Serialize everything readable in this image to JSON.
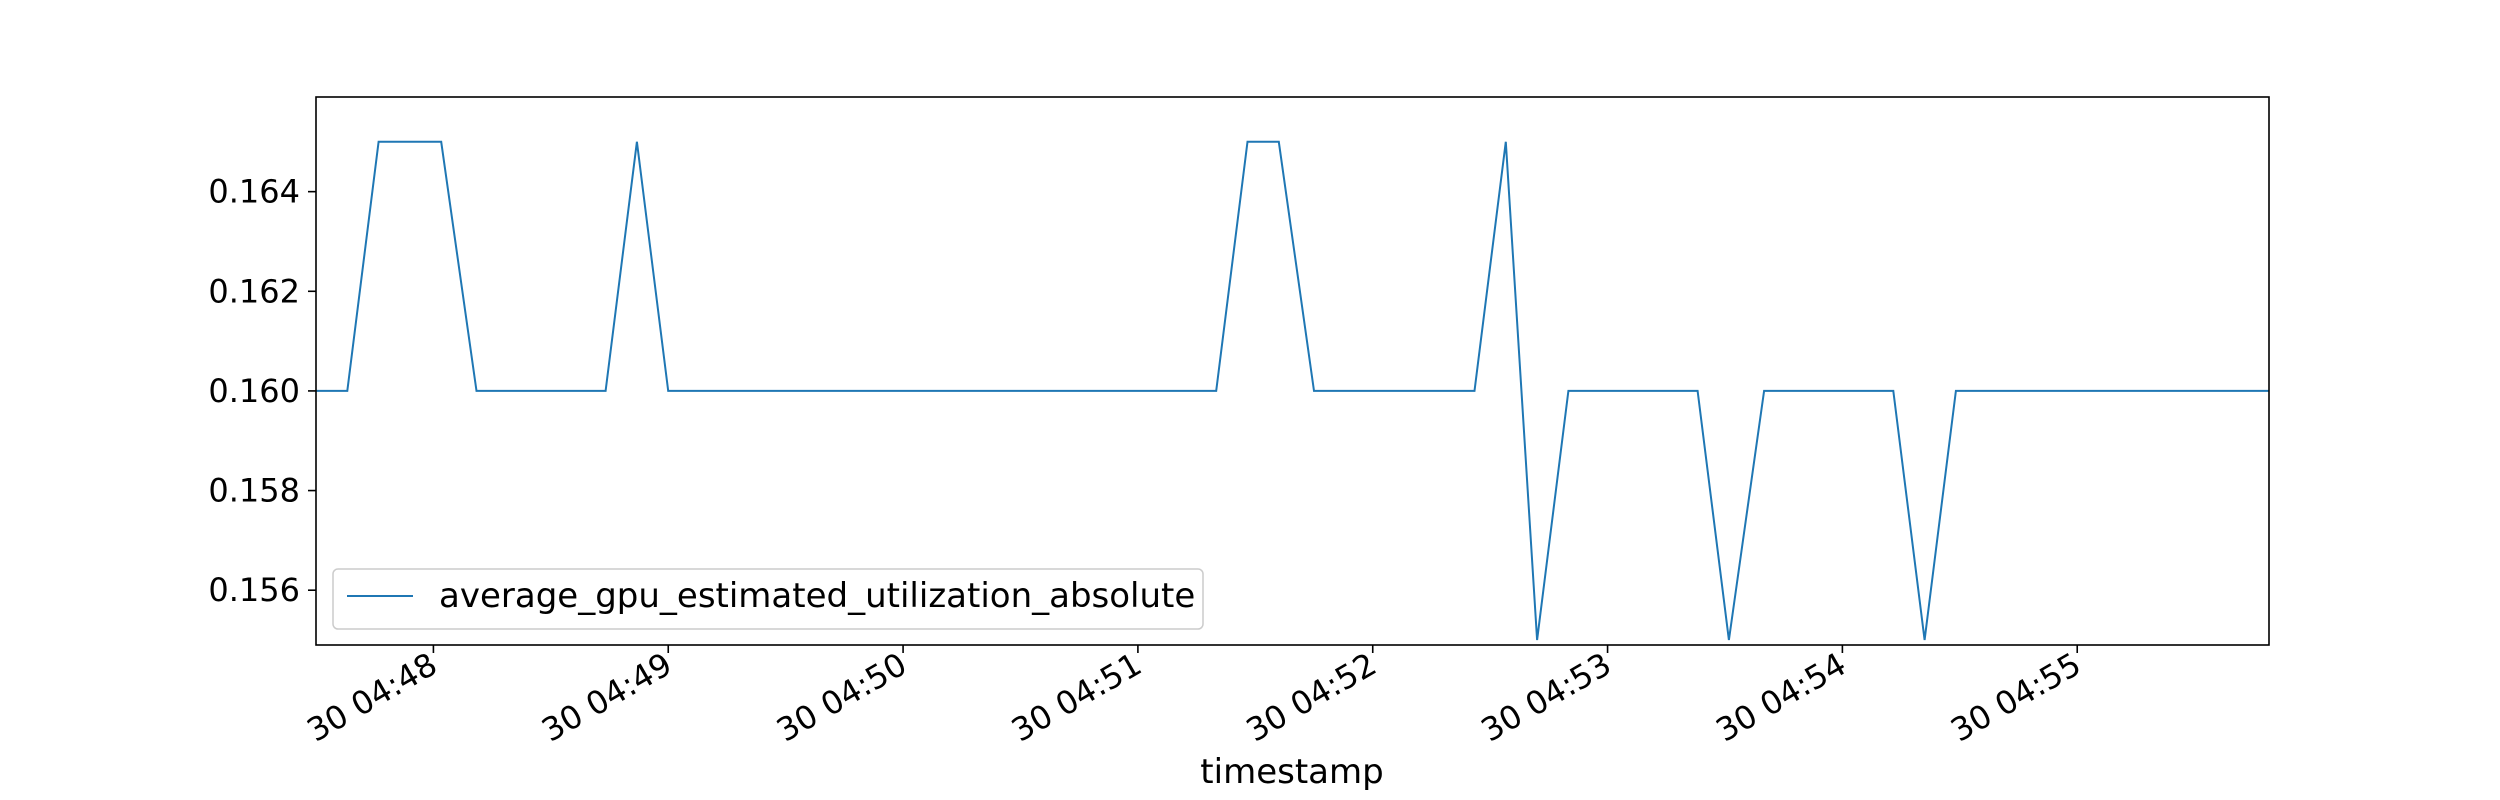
{
  "chart_data": {
    "type": "line",
    "title": "",
    "xlabel": "timestamp",
    "ylabel": "",
    "x_is_time": true,
    "x_range": [
      "30 04:47:30",
      "30 04:55:49"
    ],
    "ylim": [
      0.1549,
      0.1659
    ],
    "x_ticks": [
      {
        "t": "30 04:48:00",
        "label": "30 04:48"
      },
      {
        "t": "30 04:49:00",
        "label": "30 04:49"
      },
      {
        "t": "30 04:50:00",
        "label": "30 04:50"
      },
      {
        "t": "30 04:51:00",
        "label": "30 04:51"
      },
      {
        "t": "30 04:52:00",
        "label": "30 04:52"
      },
      {
        "t": "30 04:53:00",
        "label": "30 04:53"
      },
      {
        "t": "30 04:54:00",
        "label": "30 04:54"
      },
      {
        "t": "30 04:55:00",
        "label": "30 04:55"
      }
    ],
    "y_ticks": [
      {
        "v": 0.156,
        "label": "0.156"
      },
      {
        "v": 0.158,
        "label": "0.158"
      },
      {
        "v": 0.16,
        "label": "0.160"
      },
      {
        "v": 0.162,
        "label": "0.162"
      },
      {
        "v": 0.164,
        "label": "0.164"
      }
    ],
    "grid": false,
    "legend_position": "lower-left",
    "series": [
      {
        "name": "average_gpu_estimated_utilization_absolute",
        "color": "#1f77b4",
        "x": [
          "30 04:47:30",
          "30 04:47:38",
          "30 04:47:46",
          "30 04:47:54",
          "30 04:48:02",
          "30 04:48:11",
          "30 04:48:19",
          "30 04:48:27",
          "30 04:48:35",
          "30 04:48:44",
          "30 04:48:52",
          "30 04:49:00",
          "30 04:49:08",
          "30 04:49:16",
          "30 04:49:25",
          "30 04:49:33",
          "30 04:49:41",
          "30 04:49:49",
          "30 04:49:58",
          "30 04:50:06",
          "30 04:50:14",
          "30 04:50:22",
          "30 04:50:31",
          "30 04:50:39",
          "30 04:50:47",
          "30 04:50:55",
          "30 04:51:03",
          "30 04:51:12",
          "30 04:51:20",
          "30 04:51:28",
          "30 04:51:36",
          "30 04:51:45",
          "30 04:51:53",
          "30 04:52:01",
          "30 04:52:09",
          "30 04:52:17",
          "30 04:52:26",
          "30 04:52:34",
          "30 04:52:42",
          "30 04:52:50",
          "30 04:52:59",
          "30 04:53:07",
          "30 04:53:15",
          "30 04:53:23",
          "30 04:53:31",
          "30 04:53:40",
          "30 04:53:48",
          "30 04:53:56",
          "30 04:54:04",
          "30 04:54:13",
          "30 04:54:21",
          "30 04:54:29",
          "30 04:54:37",
          "30 04:54:46",
          "30 04:54:54",
          "30 04:55:02",
          "30 04:55:10",
          "30 04:55:18",
          "30 04:55:27",
          "30 04:55:35",
          "30 04:55:43",
          "30 04:55:49"
        ],
        "y": [
          0.16,
          0.16,
          0.165,
          0.165,
          0.165,
          0.16,
          0.16,
          0.16,
          0.16,
          0.16,
          0.165,
          0.16,
          0.16,
          0.16,
          0.16,
          0.16,
          0.16,
          0.16,
          0.16,
          0.16,
          0.16,
          0.16,
          0.16,
          0.16,
          0.16,
          0.16,
          0.16,
          0.16,
          0.16,
          0.165,
          0.165,
          0.16,
          0.16,
          0.16,
          0.16,
          0.16,
          0.16,
          0.165,
          0.155,
          0.16,
          0.16,
          0.16,
          0.16,
          0.16,
          0.155,
          0.16,
          0.16,
          0.16,
          0.16,
          0.16,
          0.155,
          0.16,
          0.16,
          0.16,
          0.16,
          0.16,
          0.16,
          0.16,
          0.16,
          0.16,
          0.16,
          0.16
        ]
      }
    ]
  }
}
